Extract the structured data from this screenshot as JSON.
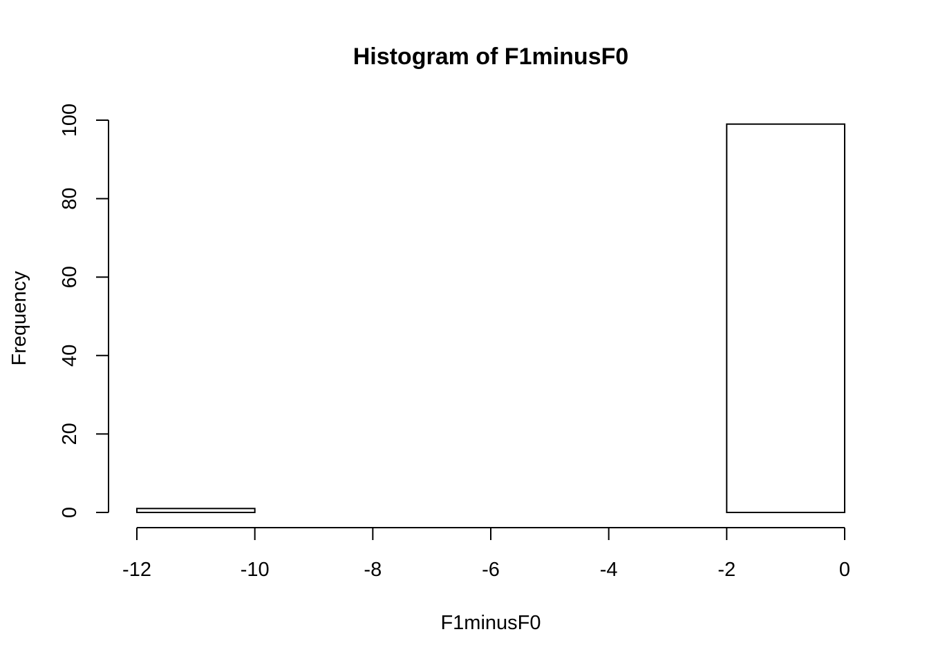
{
  "chart_data": {
    "type": "bar",
    "title": "Histogram of F1minusF0",
    "xlabel": "F1minusF0",
    "ylabel": "Frequency",
    "bins": [
      {
        "from": -12,
        "to": -10,
        "count": 1
      },
      {
        "from": -10,
        "to": -8,
        "count": 0
      },
      {
        "from": -8,
        "to": -6,
        "count": 0
      },
      {
        "from": -6,
        "to": -4,
        "count": 0
      },
      {
        "from": -4,
        "to": -2,
        "count": 0
      },
      {
        "from": -2,
        "to": 0,
        "count": 99
      }
    ],
    "xlim": [
      -12,
      0
    ],
    "ylim": [
      0,
      100
    ],
    "x_ticks": [
      "-12",
      "-10",
      "-8",
      "-6",
      "-4",
      "-2",
      "0"
    ],
    "y_ticks": [
      "0",
      "20",
      "40",
      "60",
      "80",
      "100"
    ],
    "grid": false,
    "legend": "none",
    "bar_fill": "#ffffff",
    "bar_stroke": "#000000"
  }
}
